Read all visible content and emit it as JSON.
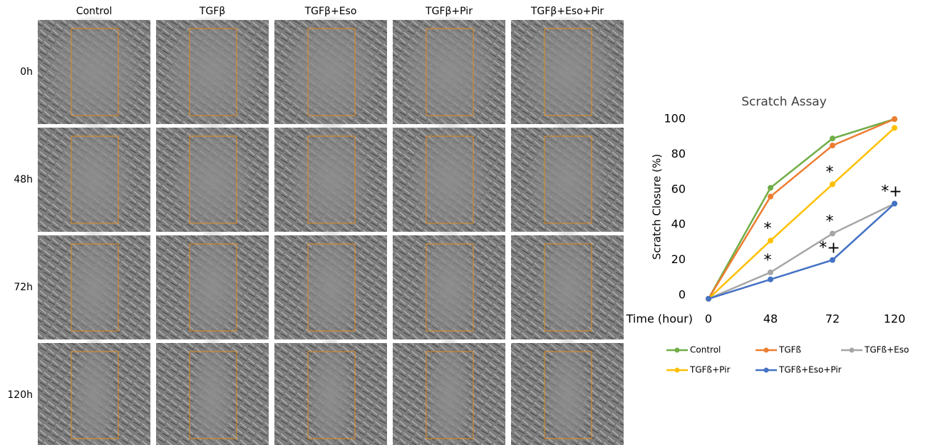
{
  "panels": {
    "columns": [
      "Control",
      "TGFβ",
      "TGFβ+Eso",
      "TGFβ+Pir",
      "TGFβ+Eso+Pir"
    ],
    "rows": [
      "0h",
      "48h",
      "72h",
      "120h"
    ]
  },
  "chart_data": {
    "type": "line",
    "title": "Scratch Assay",
    "x_label": "Time (hour)",
    "y_label": "Scratch Closure (%)",
    "categories": [
      "0",
      "48",
      "72",
      "120"
    ],
    "series": [
      {
        "name": "Control",
        "color": "#70ad47",
        "values": [
          -2,
          61,
          89,
          100
        ]
      },
      {
        "name": "TGFß",
        "color": "#ed7d31",
        "values": [
          -2,
          56,
          85,
          100
        ]
      },
      {
        "name": "TGFß+Eso",
        "color": "#a5a5a5",
        "values": [
          -2,
          13,
          35,
          52
        ]
      },
      {
        "name": "TGFß+Pir",
        "color": "#ffc000",
        "values": [
          -2,
          31,
          63,
          95
        ]
      },
      {
        "name": "TGFß+Eso+Pir",
        "color": "#4472c4",
        "values": [
          -2,
          9,
          20,
          52
        ]
      }
    ],
    "annotations": [
      {
        "text": "*",
        "series": "TGFß+Pir",
        "category": "48"
      },
      {
        "text": "*",
        "series": "TGFß+Eso",
        "category": "48"
      },
      {
        "text": "*",
        "series": "TGFß+Pir",
        "category": "72"
      },
      {
        "text": "*",
        "series": "TGFß+Eso",
        "category": "72"
      },
      {
        "text": "*+",
        "series": "TGFß+Eso+Pir",
        "category": "72"
      },
      {
        "text": "*+",
        "series": "TGFß+Eso+Pir",
        "category": "120"
      }
    ],
    "ylim": [
      0,
      100
    ],
    "yticks": [
      0,
      20,
      40,
      60,
      80,
      100
    ],
    "grid": false,
    "legend": "bottom"
  }
}
